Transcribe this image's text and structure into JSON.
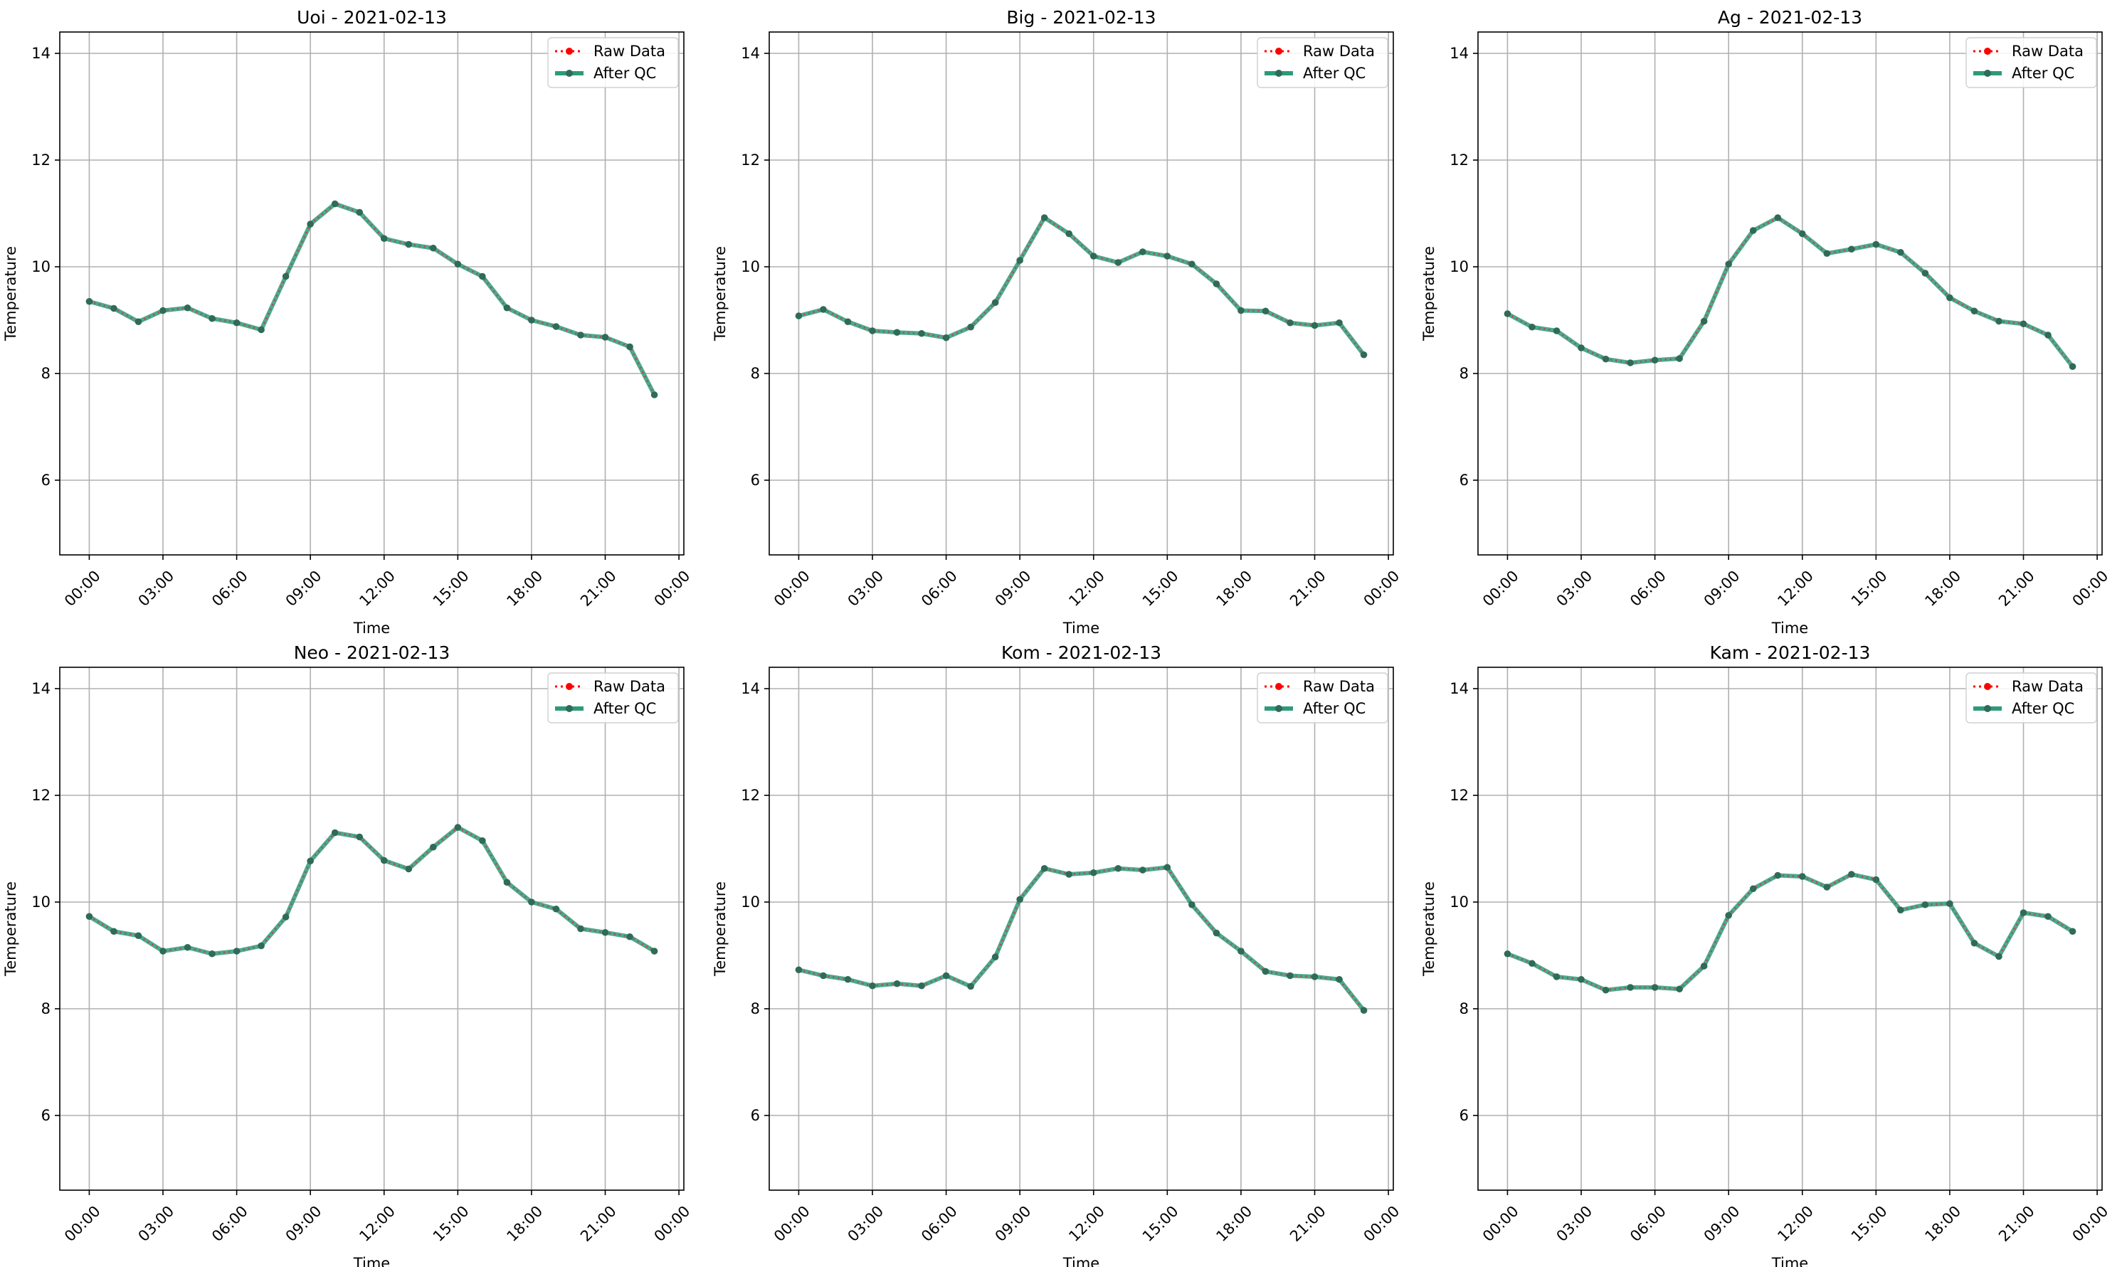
{
  "colors": {
    "raw": "#ff0000",
    "qc": "#2e9a7a",
    "qc_marker": "#2f6b58",
    "grid": "#b0b0b0",
    "axes": "#000000"
  },
  "legend": {
    "raw": "Raw Data",
    "qc": "After QC"
  },
  "chart_data": [
    {
      "type": "line",
      "title": "Uoi - 2021-02-13",
      "xlabel": "Time",
      "ylabel": "Temperature",
      "xticks": [
        "00:00",
        "03:00",
        "06:00",
        "09:00",
        "12:00",
        "15:00",
        "18:00",
        "21:00",
        "00:00"
      ],
      "yticks": [
        "6",
        "8",
        "10",
        "12",
        "14"
      ],
      "ylim": [
        4.6,
        14.4
      ],
      "xlim_hours": [
        -1.2,
        24.2
      ],
      "grid": true,
      "legend_position": "top-right",
      "x": [
        "00:00",
        "01:00",
        "02:00",
        "03:00",
        "04:00",
        "05:00",
        "06:00",
        "07:00",
        "08:00",
        "09:00",
        "10:00",
        "11:00",
        "12:00",
        "13:00",
        "14:00",
        "15:00",
        "16:00",
        "17:00",
        "18:00",
        "19:00",
        "20:00",
        "21:00",
        "22:00",
        "23:00"
      ],
      "series": [
        {
          "name": "Raw Data",
          "values": [
            9.35,
            9.22,
            8.97,
            9.18,
            9.23,
            9.03,
            8.95,
            8.82,
            9.82,
            10.8,
            11.18,
            11.02,
            10.53,
            10.42,
            10.35,
            10.05,
            9.82,
            9.23,
            9.0,
            8.88,
            8.72,
            8.68,
            8.5,
            7.6
          ]
        },
        {
          "name": "After QC",
          "values": [
            9.35,
            9.22,
            8.97,
            9.18,
            9.23,
            9.03,
            8.95,
            8.82,
            9.82,
            10.8,
            11.18,
            11.02,
            10.53,
            10.42,
            10.35,
            10.05,
            9.82,
            9.23,
            9.0,
            8.88,
            8.72,
            8.68,
            8.5,
            7.6
          ]
        }
      ]
    },
    {
      "type": "line",
      "title": "Big - 2021-02-13",
      "xlabel": "Time",
      "ylabel": "Temperature",
      "xticks": [
        "00:00",
        "03:00",
        "06:00",
        "09:00",
        "12:00",
        "15:00",
        "18:00",
        "21:00",
        "00:00"
      ],
      "yticks": [
        "6",
        "8",
        "10",
        "12",
        "14"
      ],
      "ylim": [
        4.6,
        14.4
      ],
      "xlim_hours": [
        -1.2,
        24.2
      ],
      "grid": true,
      "legend_position": "top-right",
      "x": [
        "00:00",
        "01:00",
        "02:00",
        "03:00",
        "04:00",
        "05:00",
        "06:00",
        "07:00",
        "08:00",
        "09:00",
        "10:00",
        "11:00",
        "12:00",
        "13:00",
        "14:00",
        "15:00",
        "16:00",
        "17:00",
        "18:00",
        "19:00",
        "20:00",
        "21:00",
        "22:00",
        "23:00"
      ],
      "series": [
        {
          "name": "Raw Data",
          "values": [
            9.08,
            9.2,
            8.97,
            8.8,
            8.77,
            8.75,
            8.67,
            8.87,
            9.33,
            10.12,
            10.92,
            10.62,
            10.2,
            10.08,
            10.28,
            10.2,
            10.05,
            9.68,
            9.18,
            9.17,
            8.95,
            8.9,
            8.95,
            8.35
          ]
        },
        {
          "name": "After QC",
          "values": [
            9.08,
            9.2,
            8.97,
            8.8,
            8.77,
            8.75,
            8.67,
            8.87,
            9.33,
            10.12,
            10.92,
            10.62,
            10.2,
            10.08,
            10.28,
            10.2,
            10.05,
            9.68,
            9.18,
            9.17,
            8.95,
            8.9,
            8.95,
            8.35
          ]
        }
      ]
    },
    {
      "type": "line",
      "title": "Ag - 2021-02-13",
      "xlabel": "Time",
      "ylabel": "Temperature",
      "xticks": [
        "00:00",
        "03:00",
        "06:00",
        "09:00",
        "12:00",
        "15:00",
        "18:00",
        "21:00",
        "00:00"
      ],
      "yticks": [
        "6",
        "8",
        "10",
        "12",
        "14"
      ],
      "ylim": [
        4.6,
        14.4
      ],
      "xlim_hours": [
        -1.2,
        24.2
      ],
      "grid": true,
      "legend_position": "top-right",
      "x": [
        "00:00",
        "01:00",
        "02:00",
        "03:00",
        "04:00",
        "05:00",
        "06:00",
        "07:00",
        "08:00",
        "09:00",
        "10:00",
        "11:00",
        "12:00",
        "13:00",
        "14:00",
        "15:00",
        "16:00",
        "17:00",
        "18:00",
        "19:00",
        "20:00",
        "21:00",
        "22:00",
        "23:00"
      ],
      "series": [
        {
          "name": "Raw Data",
          "values": [
            9.12,
            8.87,
            8.8,
            8.48,
            8.27,
            8.2,
            8.25,
            8.28,
            8.98,
            10.05,
            10.68,
            10.92,
            10.62,
            10.25,
            10.33,
            10.42,
            10.27,
            9.88,
            9.42,
            9.17,
            8.98,
            8.93,
            8.72,
            8.13
          ]
        },
        {
          "name": "After QC",
          "values": [
            9.12,
            8.87,
            8.8,
            8.48,
            8.27,
            8.2,
            8.25,
            8.28,
            8.98,
            10.05,
            10.68,
            10.92,
            10.62,
            10.25,
            10.33,
            10.42,
            10.27,
            9.88,
            9.42,
            9.17,
            8.98,
            8.93,
            8.72,
            8.13
          ]
        }
      ]
    },
    {
      "type": "line",
      "title": "Neo - 2021-02-13",
      "xlabel": "Time",
      "ylabel": "Temperature",
      "xticks": [
        "00:00",
        "03:00",
        "06:00",
        "09:00",
        "12:00",
        "15:00",
        "18:00",
        "21:00",
        "00:00"
      ],
      "yticks": [
        "6",
        "8",
        "10",
        "12",
        "14"
      ],
      "ylim": [
        4.6,
        14.4
      ],
      "xlim_hours": [
        -1.2,
        24.2
      ],
      "grid": true,
      "legend_position": "top-right",
      "x": [
        "00:00",
        "01:00",
        "02:00",
        "03:00",
        "04:00",
        "05:00",
        "06:00",
        "07:00",
        "08:00",
        "09:00",
        "10:00",
        "11:00",
        "12:00",
        "13:00",
        "14:00",
        "15:00",
        "16:00",
        "17:00",
        "18:00",
        "19:00",
        "20:00",
        "21:00",
        "22:00",
        "23:00"
      ],
      "series": [
        {
          "name": "Raw Data",
          "values": [
            9.73,
            9.45,
            9.37,
            9.08,
            9.15,
            9.03,
            9.08,
            9.18,
            9.72,
            10.77,
            11.3,
            11.22,
            10.78,
            10.62,
            11.03,
            11.4,
            11.15,
            10.37,
            10.0,
            9.87,
            9.5,
            9.43,
            9.35,
            9.08
          ]
        },
        {
          "name": "After QC",
          "values": [
            9.73,
            9.45,
            9.37,
            9.08,
            9.15,
            9.03,
            9.08,
            9.18,
            9.72,
            10.77,
            11.3,
            11.22,
            10.78,
            10.62,
            11.03,
            11.4,
            11.15,
            10.37,
            10.0,
            9.87,
            9.5,
            9.43,
            9.35,
            9.08
          ]
        }
      ]
    },
    {
      "type": "line",
      "title": "Kom - 2021-02-13",
      "xlabel": "Time",
      "ylabel": "Temperature",
      "xticks": [
        "00:00",
        "03:00",
        "06:00",
        "09:00",
        "12:00",
        "15:00",
        "18:00",
        "21:00",
        "00:00"
      ],
      "yticks": [
        "6",
        "8",
        "10",
        "12",
        "14"
      ],
      "ylim": [
        4.6,
        14.4
      ],
      "xlim_hours": [
        -1.2,
        24.2
      ],
      "grid": true,
      "legend_position": "top-right",
      "x": [
        "00:00",
        "01:00",
        "02:00",
        "03:00",
        "04:00",
        "05:00",
        "06:00",
        "07:00",
        "08:00",
        "09:00",
        "10:00",
        "11:00",
        "12:00",
        "13:00",
        "14:00",
        "15:00",
        "16:00",
        "17:00",
        "18:00",
        "19:00",
        "20:00",
        "21:00",
        "22:00",
        "23:00"
      ],
      "series": [
        {
          "name": "Raw Data",
          "values": [
            8.73,
            8.62,
            8.55,
            8.43,
            8.47,
            8.43,
            8.62,
            8.42,
            8.97,
            10.05,
            10.63,
            10.52,
            10.55,
            10.63,
            10.6,
            10.65,
            9.95,
            9.42,
            9.08,
            8.7,
            8.62,
            8.6,
            8.55,
            7.97
          ]
        },
        {
          "name": "After QC",
          "values": [
            8.73,
            8.62,
            8.55,
            8.43,
            8.47,
            8.43,
            8.62,
            8.42,
            8.97,
            10.05,
            10.63,
            10.52,
            10.55,
            10.63,
            10.6,
            10.65,
            9.95,
            9.42,
            9.08,
            8.7,
            8.62,
            8.6,
            8.55,
            7.97
          ]
        }
      ]
    },
    {
      "type": "line",
      "title": "Kam - 2021-02-13",
      "xlabel": "Time",
      "ylabel": "Temperature",
      "xticks": [
        "00:00",
        "03:00",
        "06:00",
        "09:00",
        "12:00",
        "15:00",
        "18:00",
        "21:00",
        "00:00"
      ],
      "yticks": [
        "6",
        "8",
        "10",
        "12",
        "14"
      ],
      "ylim": [
        4.6,
        14.4
      ],
      "xlim_hours": [
        -1.2,
        24.2
      ],
      "grid": true,
      "legend_position": "top-right",
      "x": [
        "00:00",
        "01:00",
        "02:00",
        "03:00",
        "04:00",
        "05:00",
        "06:00",
        "07:00",
        "08:00",
        "09:00",
        "10:00",
        "11:00",
        "12:00",
        "13:00",
        "14:00",
        "15:00",
        "16:00",
        "17:00",
        "18:00",
        "19:00",
        "20:00",
        "21:00",
        "22:00",
        "23:00"
      ],
      "series": [
        {
          "name": "Raw Data",
          "values": [
            9.03,
            8.85,
            8.6,
            8.55,
            8.35,
            8.4,
            8.4,
            8.37,
            8.8,
            9.75,
            10.25,
            10.5,
            10.48,
            10.28,
            10.52,
            10.42,
            9.85,
            9.95,
            9.97,
            9.23,
            8.98,
            9.8,
            9.73,
            9.45
          ]
        },
        {
          "name": "After QC",
          "values": [
            9.03,
            8.85,
            8.6,
            8.55,
            8.35,
            8.4,
            8.4,
            8.37,
            8.8,
            9.75,
            10.25,
            10.5,
            10.48,
            10.28,
            10.52,
            10.42,
            9.85,
            9.95,
            9.97,
            9.23,
            8.98,
            9.8,
            9.73,
            9.45
          ]
        }
      ]
    }
  ]
}
